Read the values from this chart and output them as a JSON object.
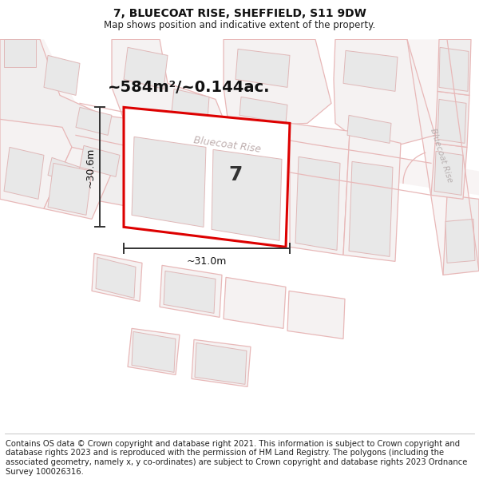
{
  "title": "7, BLUECOAT RISE, SHEFFIELD, S11 9DW",
  "subtitle": "Map shows position and indicative extent of the property.",
  "footer": "Contains OS data © Crown copyright and database right 2021. This information is subject to Crown copyright and database rights 2023 and is reproduced with the permission of HM Land Registry. The polygons (including the associated geometry, namely x, y co-ordinates) are subject to Crown copyright and database rights 2023 Ordnance Survey 100026316.",
  "area_label": "~584m²/~0.144ac.",
  "width_label": "~31.0m",
  "height_label": "~30.6m",
  "number_label": "7",
  "map_bg": "#ffffff",
  "road_outline_color": "#e8b8b8",
  "building_fill": "#e8e8e8",
  "building_outline": "#e0b8b8",
  "highlight_color": "#dd0000",
  "highlight_fill": "#ffffff",
  "street_label_color": "#c0b0b0",
  "street_label2_color": "#b8b0b0",
  "dim_color": "#333333",
  "title_fontsize": 10,
  "subtitle_fontsize": 8.5,
  "footer_fontsize": 7.2,
  "area_fontsize": 14,
  "number_fontsize": 18,
  "street_fontsize": 9,
  "dim_fontsize": 9
}
